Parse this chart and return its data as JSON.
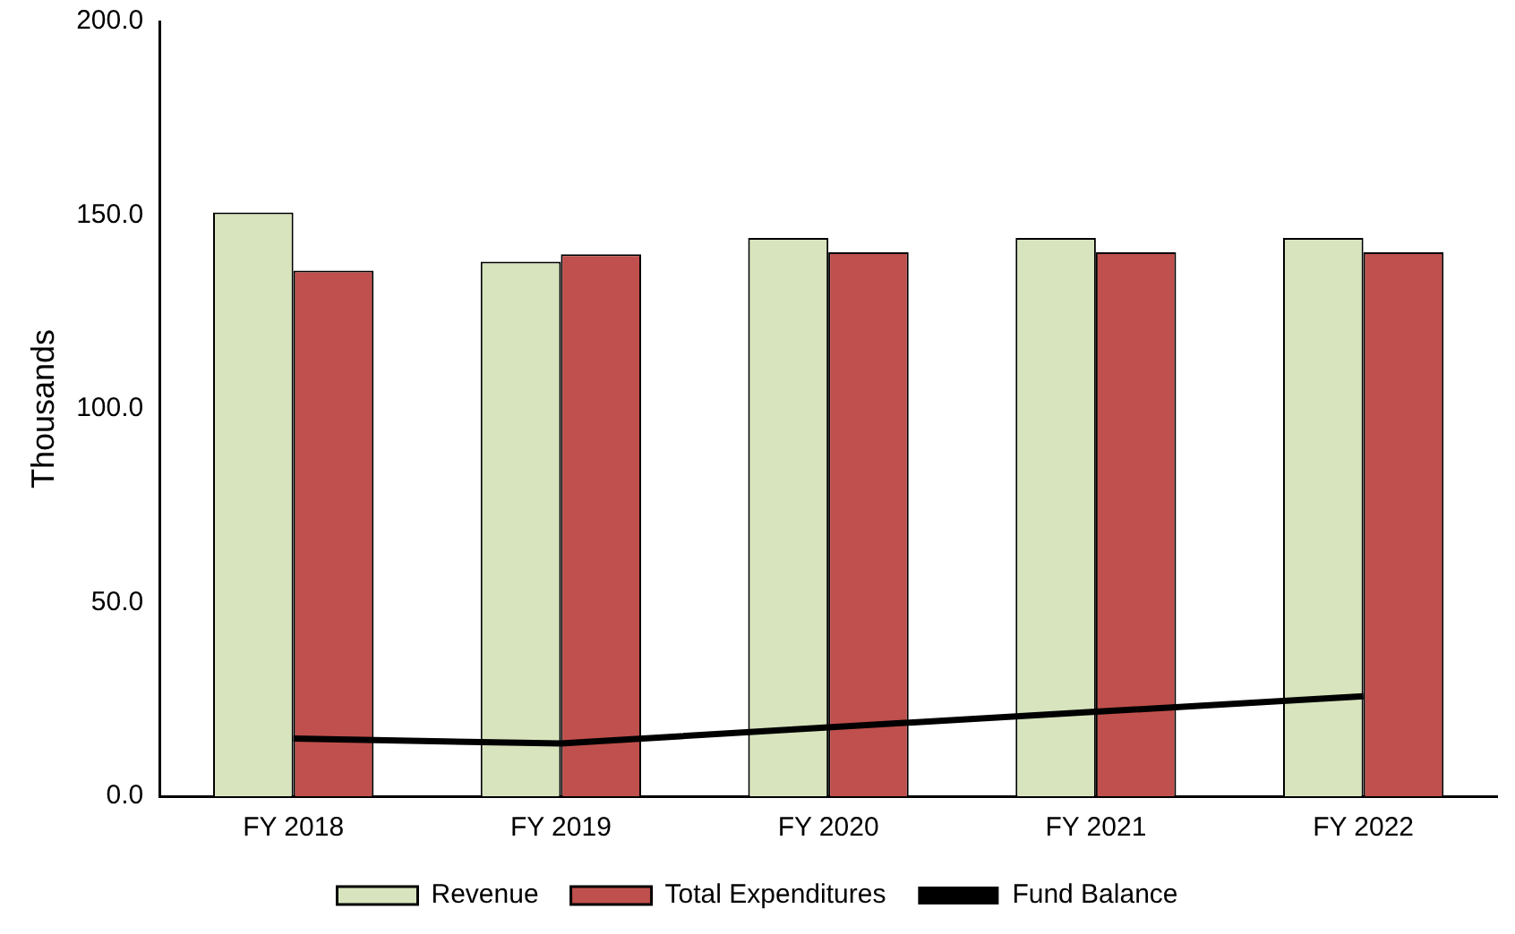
{
  "chart_data": {
    "type": "bar",
    "ylabel": "Thousands",
    "categories": [
      "FY 2018",
      "FY 2019",
      "FY 2020",
      "FY 2021",
      "FY 2022"
    ],
    "series": [
      {
        "name": "Revenue",
        "color": "#d7e4bd",
        "values": [
          150.7,
          138.0,
          144.1,
          144.1,
          144.1
        ]
      },
      {
        "name": "Total Expenditures",
        "color": "#c0504d",
        "values": [
          135.7,
          139.9,
          140.4,
          140.4,
          140.4
        ]
      },
      {
        "name": "Fund Balance",
        "type": "line",
        "color": "#000000",
        "values": [
          14.9,
          13.6,
          17.8,
          21.8,
          25.8
        ]
      }
    ],
    "ylim": [
      0,
      200
    ],
    "yticks": [
      {
        "value": 0,
        "label": "0.0"
      },
      {
        "value": 50,
        "label": "50.0"
      },
      {
        "value": 100,
        "label": "100.0"
      },
      {
        "value": 150,
        "label": "150.0"
      },
      {
        "value": 200,
        "label": "200.0"
      }
    ],
    "grid": false,
    "legend": "bottom",
    "marker": "none"
  }
}
